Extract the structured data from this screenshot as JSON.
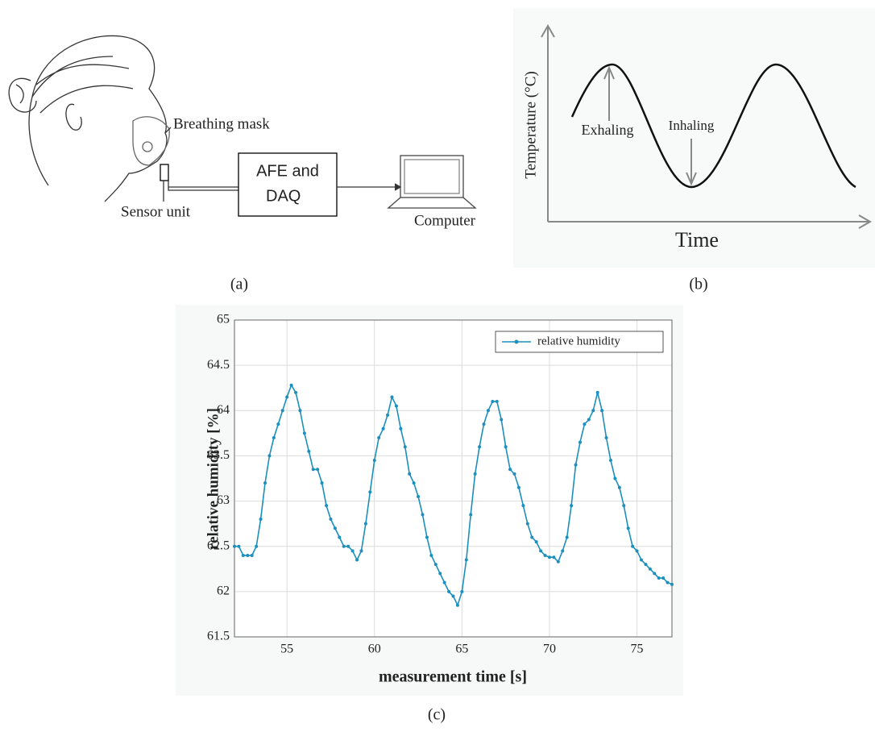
{
  "panel_a": {
    "mask_label": "Breathing mask",
    "sensor_label": "Sensor unit",
    "box_lines": [
      "AFE and",
      "DAQ"
    ],
    "computer_label": "Computer"
  },
  "panel_b": {
    "y_label": "Temperature (°C)",
    "x_label": "Time",
    "exhale_label": "Exhaling",
    "inhale_label": "Inhaling"
  },
  "captions": [
    "(a)",
    "(b)",
    "(c)"
  ],
  "chart_data": {
    "type": "line",
    "x_label": "measurement time [s]",
    "y_label": "relative humidity [%]",
    "x": [
      52,
      52.25,
      52.5,
      52.75,
      53,
      53.25,
      53.5,
      53.75,
      54,
      54.25,
      54.5,
      54.75,
      55,
      55.25,
      55.5,
      55.75,
      56,
      56.25,
      56.5,
      56.75,
      57,
      57.25,
      57.5,
      57.75,
      58,
      58.25,
      58.5,
      58.75,
      59,
      59.25,
      59.5,
      59.75,
      60,
      60.25,
      60.5,
      60.75,
      61,
      61.25,
      61.5,
      61.75,
      62,
      62.25,
      62.5,
      62.75,
      63,
      63.25,
      63.5,
      63.75,
      64,
      64.25,
      64.5,
      64.75,
      65,
      65.25,
      65.5,
      65.75,
      66,
      66.25,
      66.5,
      66.75,
      67,
      67.25,
      67.5,
      67.75,
      68,
      68.25,
      68.5,
      68.75,
      69,
      69.25,
      69.5,
      69.75,
      70,
      70.25,
      70.5,
      70.75,
      71,
      71.25,
      71.5,
      71.75,
      72,
      72.25,
      72.5,
      72.75,
      73,
      73.25,
      73.5,
      73.75,
      74,
      74.25,
      74.5,
      74.75,
      75,
      75.25,
      75.5,
      75.75,
      76,
      76.25,
      76.5,
      76.75,
      77
    ],
    "series": [
      {
        "name": "relative humidity",
        "color": "#1b8fbd",
        "values": [
          62.5,
          62.5,
          62.4,
          62.4,
          62.4,
          62.5,
          62.8,
          63.2,
          63.5,
          63.7,
          63.85,
          64,
          64.15,
          64.28,
          64.2,
          64,
          63.75,
          63.55,
          63.35,
          63.35,
          63.2,
          62.95,
          62.8,
          62.7,
          62.6,
          62.5,
          62.5,
          62.45,
          62.35,
          62.45,
          62.75,
          63.1,
          63.45,
          63.7,
          63.8,
          63.95,
          64.15,
          64.05,
          63.8,
          63.6,
          63.3,
          63.2,
          63.05,
          62.85,
          62.6,
          62.4,
          62.3,
          62.2,
          62.1,
          62,
          61.95,
          61.85,
          62,
          62.35,
          62.85,
          63.3,
          63.6,
          63.85,
          64,
          64.1,
          64.1,
          63.9,
          63.6,
          63.35,
          63.3,
          63.15,
          62.95,
          62.75,
          62.6,
          62.55,
          62.45,
          62.4,
          62.38,
          62.38,
          62.33,
          62.45,
          62.6,
          62.95,
          63.4,
          63.65,
          63.85,
          63.9,
          64,
          64.2,
          64,
          63.7,
          63.45,
          63.25,
          63.15,
          62.95,
          62.7,
          62.5,
          62.45,
          62.35,
          62.3,
          62.25,
          62.2,
          62.15,
          62.15,
          62.1,
          62.08
        ]
      }
    ],
    "xlim": [
      52,
      77
    ],
    "xticks": [
      55,
      60,
      65,
      70,
      75
    ],
    "ylim": [
      61.5,
      65
    ],
    "yticks": [
      61.5,
      62,
      62.5,
      63,
      63.5,
      64,
      64.5,
      65
    ],
    "grid": true,
    "legend": "top-right"
  }
}
